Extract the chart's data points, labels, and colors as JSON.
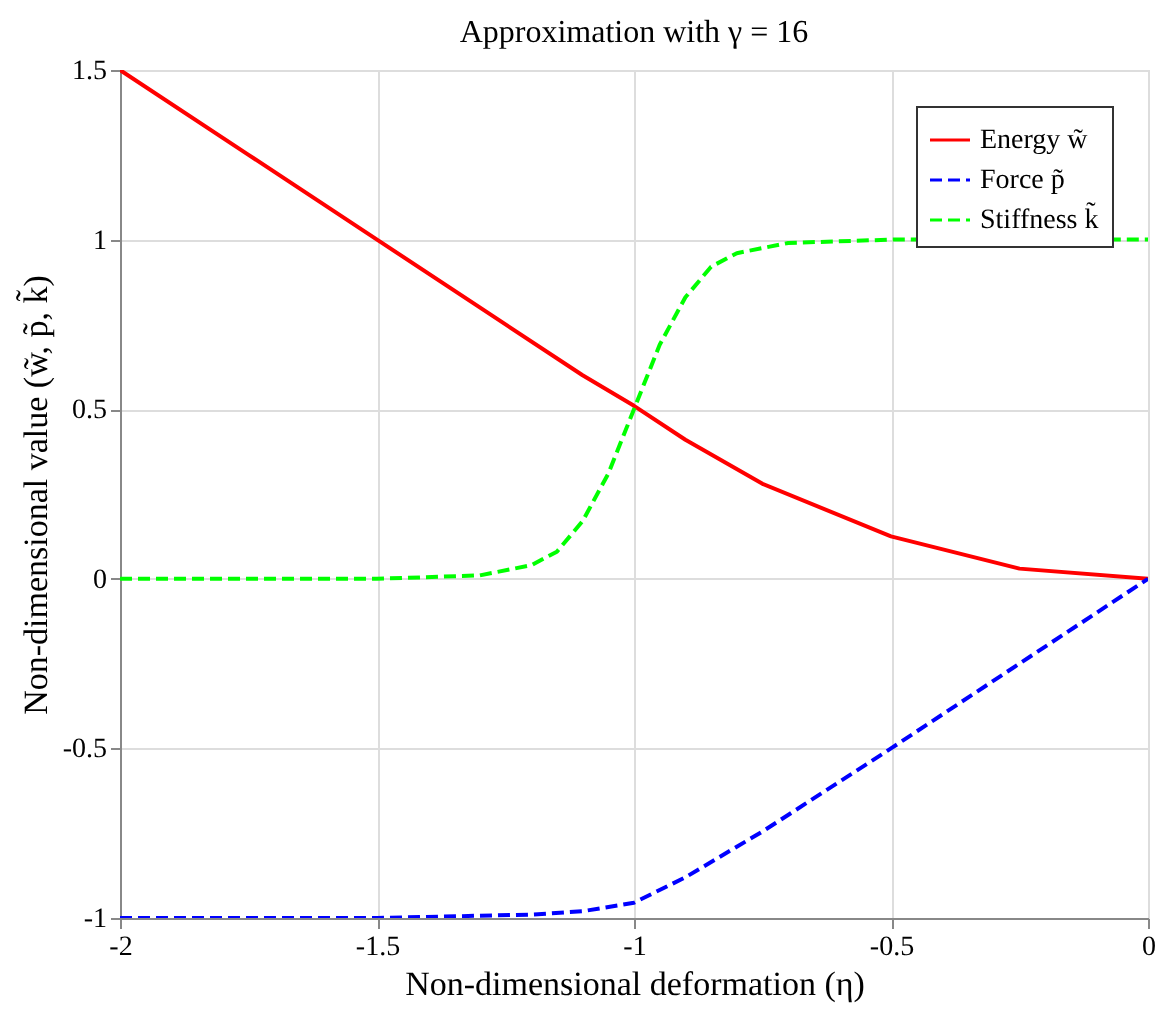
{
  "chart_data": {
    "type": "line",
    "title": "Approximation with γ = 16",
    "xlabel": "Non-dimensional deformation (η)",
    "ylabel": "Non-dimensional value (w̃, p̃, k̃)",
    "xlim": [
      -2,
      0
    ],
    "ylim": [
      -1,
      1.5
    ],
    "xticks": [
      -2,
      -1.5,
      -1,
      -0.5,
      0
    ],
    "yticks": [
      -1,
      -0.5,
      0,
      0.5,
      1,
      1.5
    ],
    "grid": true,
    "legend": "top right",
    "marker": "none",
    "series": [
      {
        "name": "Energy w̃",
        "color": "#ff0000",
        "line_style": "solid",
        "x": [
          -2,
          -1.75,
          -1.5,
          -1.25,
          -1.1,
          -1,
          -0.9,
          -0.75,
          -0.5,
          -0.25,
          0
        ],
        "values": [
          1.5,
          1.25,
          1.0,
          0.75,
          0.6,
          0.51,
          0.41,
          0.28,
          0.125,
          0.03,
          0
        ]
      },
      {
        "name": "Force p̃",
        "color": "#0000ff",
        "line_style": "dashed",
        "x": [
          -2,
          -1.5,
          -1.2,
          -1.1,
          -1,
          -0.9,
          -0.8,
          -0.75,
          -0.5,
          -0.25,
          0
        ],
        "values": [
          -1,
          -1,
          -0.99,
          -0.98,
          -0.955,
          -0.88,
          -0.79,
          -0.745,
          -0.5,
          -0.25,
          0
        ]
      },
      {
        "name": "Stiffness k̃",
        "color": "#00ff00",
        "line_style": "dashed",
        "x": [
          -2,
          -1.5,
          -1.3,
          -1.2,
          -1.15,
          -1.1,
          -1.05,
          -1,
          -0.95,
          -0.9,
          -0.85,
          -0.8,
          -0.7,
          -0.5,
          0
        ],
        "values": [
          0,
          0,
          0.01,
          0.04,
          0.08,
          0.17,
          0.31,
          0.5,
          0.69,
          0.83,
          0.92,
          0.96,
          0.99,
          1,
          1
        ]
      }
    ]
  }
}
